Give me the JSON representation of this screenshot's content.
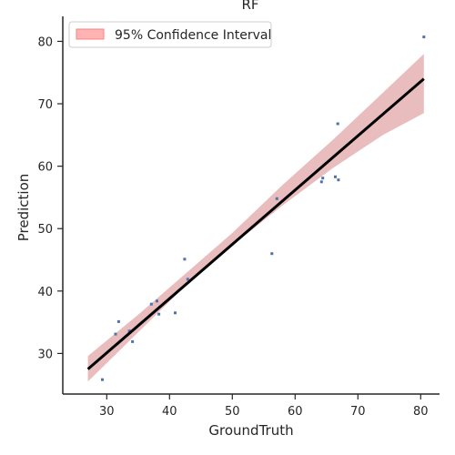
{
  "chart_data": {
    "type": "scatter",
    "title": "RF",
    "xlabel": "GroundTruth",
    "ylabel": "Prediction",
    "xlim": [
      23,
      83
    ],
    "ylim": [
      23.5,
      84
    ],
    "xticks": [
      30,
      40,
      50,
      60,
      70,
      80
    ],
    "yticks": [
      30,
      40,
      50,
      60,
      70,
      80
    ],
    "grid": false,
    "legend": {
      "placement": "top-left",
      "entries": [
        "95% Confidence Interval"
      ]
    },
    "points": [
      {
        "x": 29.3,
        "y": 25.8
      },
      {
        "x": 31.4,
        "y": 33.1
      },
      {
        "x": 31.9,
        "y": 35.1
      },
      {
        "x": 33.6,
        "y": 33.6
      },
      {
        "x": 34.1,
        "y": 31.9
      },
      {
        "x": 37.1,
        "y": 37.9
      },
      {
        "x": 38.0,
        "y": 38.4
      },
      {
        "x": 38.3,
        "y": 36.3
      },
      {
        "x": 40.9,
        "y": 36.5
      },
      {
        "x": 42.4,
        "y": 45.1
      },
      {
        "x": 42.9,
        "y": 41.9
      },
      {
        "x": 56.3,
        "y": 46.0
      },
      {
        "x": 57.1,
        "y": 54.8
      },
      {
        "x": 64.2,
        "y": 57.5
      },
      {
        "x": 64.4,
        "y": 58.1
      },
      {
        "x": 66.4,
        "y": 58.3
      },
      {
        "x": 66.9,
        "y": 57.8
      },
      {
        "x": 66.8,
        "y": 66.8
      },
      {
        "x": 80.5,
        "y": 80.7
      }
    ],
    "regression": {
      "x0": 27,
      "y0": 27.5,
      "x1": 80.5,
      "y1": 74.0
    },
    "confidence_band": {
      "x": [
        27,
        35,
        42,
        50,
        58,
        66,
        74,
        80.5
      ],
      "lower": [
        25.5,
        33.4,
        40.3,
        47.3,
        53.7,
        59.7,
        65.0,
        68.5
      ],
      "upper": [
        29.6,
        36.2,
        42.3,
        49.3,
        57.0,
        64.2,
        71.8,
        78.0
      ]
    },
    "colors": {
      "points": "#4c72b0",
      "line": "#000000",
      "band": "#c44e52",
      "legend_patch_fill": "#ffb3b3",
      "legend_patch_edge": "#ff8080"
    }
  }
}
